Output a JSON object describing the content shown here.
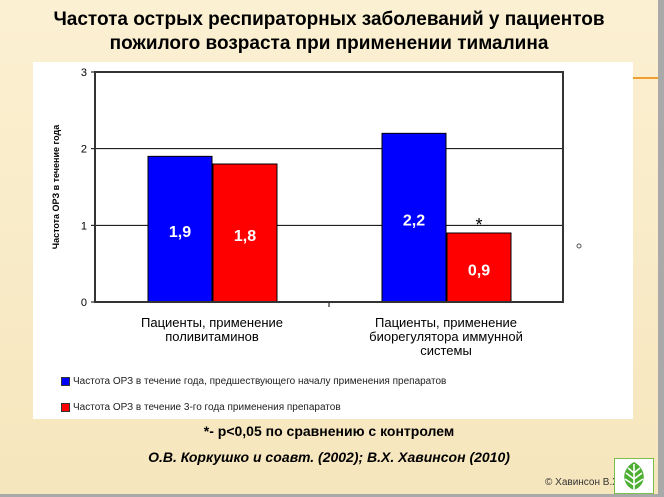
{
  "slide": {
    "title_line1": "Частота  острых респираторных  заболеваний у пациентов",
    "title_line2": "пожилого возраста при применении тималина",
    "note": "*-  р<0,05 по сравнению с контролем",
    "reference": "О.В. Коркушко  и соавт. (2002);  В.Х. Хавинсон (2010)",
    "copyright": "© Хавинсон В.Х."
  },
  "chart_data": {
    "type": "bar",
    "ylabel": "Частота ОРЗ в течение года",
    "ylim": [
      0,
      3
    ],
    "yticks": [
      "0",
      "1",
      "2",
      "3"
    ],
    "categories": [
      "Пациенты, применение поливитаминов",
      "Пациенты, применение биорегулятора иммунной системы"
    ],
    "category_lines": [
      [
        "Пациенты, применение",
        "поливитаминов"
      ],
      [
        "Пациенты, применение",
        "биорегулятора иммунной",
        "системы"
      ]
    ],
    "series": [
      {
        "name": "Частота ОРЗ в течение года, предшествующего началу применения препаратов",
        "values": [
          1.9,
          2.2
        ],
        "labels": [
          "1,9",
          "2,2"
        ],
        "color": "#0000ff"
      },
      {
        "name": "Частота ОРЗ в течение 3-го года применения препаратов",
        "values": [
          1.8,
          0.9
        ],
        "labels": [
          "1,8",
          "0,9"
        ],
        "color": "#ff0000"
      }
    ],
    "annotation": "*",
    "grid": true,
    "legend": "bottom"
  }
}
